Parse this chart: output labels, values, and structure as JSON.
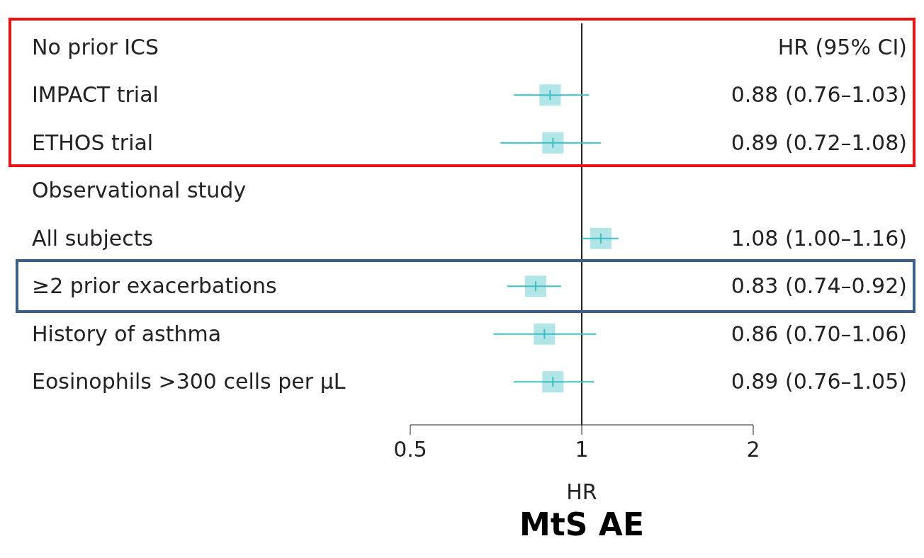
{
  "chart_data": {
    "type": "scatter",
    "title": "MtS AE",
    "xlabel": "HR",
    "orientation": "horizontal",
    "categories": [
      "No prior ICS",
      "IMPACT trial",
      "ETHOS trial",
      "Observational study",
      "All subjects",
      "≥2 prior exacerbations",
      "History of asthma",
      "Eosinophils >300 cells per μL"
    ],
    "values": [
      null,
      0.88,
      0.89,
      null,
      1.08,
      0.83,
      0.86,
      0.89
    ],
    "errors": [
      null,
      [
        0.76,
        1.03
      ],
      [
        0.72,
        1.08
      ],
      null,
      [
        1.0,
        1.16
      ],
      [
        0.74,
        0.92
      ],
      [
        0.7,
        1.06
      ],
      [
        0.76,
        1.05
      ]
    ],
    "value_labels": [
      null,
      "0.88 (0.76–1.03)",
      "0.89 (0.72–1.08)",
      null,
      "1.08 (1.00–1.16)",
      "0.83 (0.74–0.92)",
      "0.86 (0.70–1.06)",
      "0.89 (0.76–1.05)"
    ],
    "color": "#3bbfc4",
    "marker": "square",
    "log": "x",
    "xlim": [
      0.5,
      2
    ],
    "xticks": [
      0.5,
      1,
      2
    ],
    "ref_lines": [
      {
        "axis": "x",
        "value": 1,
        "color": "#222222"
      }
    ],
    "annotations": [
      "HR (95% CI)"
    ]
  }
}
